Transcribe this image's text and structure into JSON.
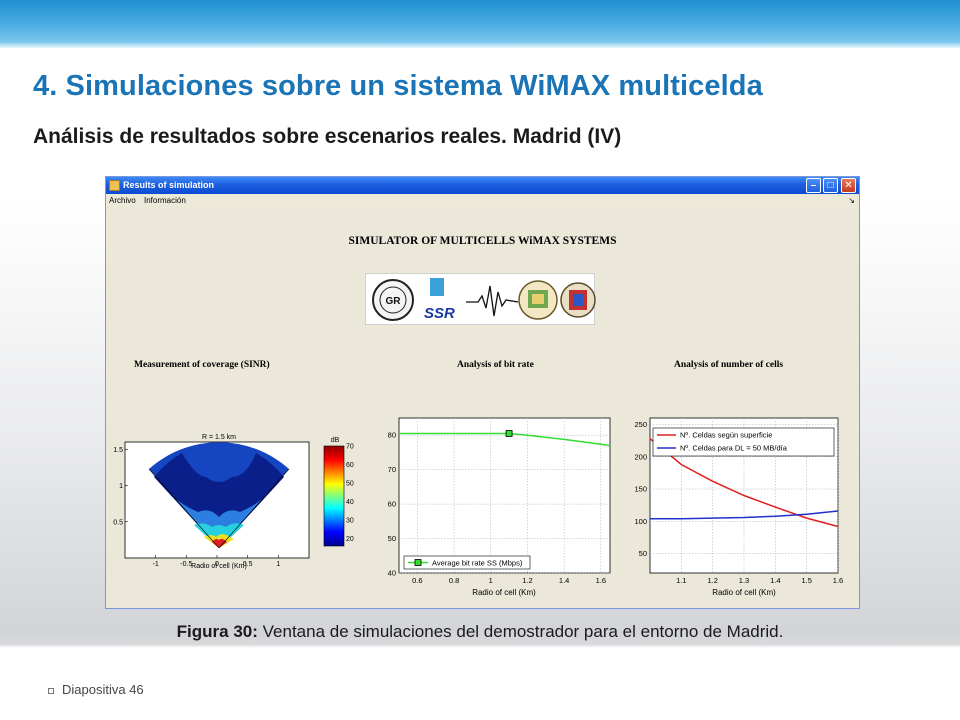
{
  "slide": {
    "title": "4. Simulaciones sobre un sistema WiMAX multicelda",
    "subtitle": "Análisis de resultados sobre escenarios reales. Madrid (IV)",
    "caption_bold": "Figura 30:",
    "caption_rest": " Ventana de simulaciones del demostrador para el entorno de Madrid.",
    "footer": "Diapositiva 46",
    "colors": {
      "title": "#1a74b6",
      "band": "#2a96d6"
    }
  },
  "window": {
    "title": "Results of simulation",
    "menu": [
      "Archivo",
      "Información"
    ],
    "min_icon": "minimize-icon",
    "max_icon": "maximize-icon",
    "close_icon": "close-icon",
    "simulator_title": "SIMULATOR OF MULTICELLS WiMAX SYSTEMS",
    "logos": {
      "gr": "GR",
      "ssr": "SSR"
    }
  },
  "panels": {
    "coverage_title": "Measurement of coverage (SINR)",
    "bitrate_title": "Analysis of bit rate",
    "cells_title": "Analysis of number of cells"
  },
  "chart_data": [
    {
      "type": "heatmap",
      "title": "R = 1.5 km",
      "xlabel": "Radio of cell (Km)",
      "ylabel": "",
      "xticks": [
        "-1",
        "-0.5",
        "0",
        "0.5",
        "1"
      ],
      "yticks": [
        "1.5",
        "1",
        "0.5"
      ],
      "xlim": [
        -1.5,
        1.5
      ],
      "ylim": [
        0,
        1.6
      ],
      "colorbar": {
        "label": "dB",
        "ticks": [
          "70",
          "60",
          "50",
          "40",
          "30",
          "20"
        ],
        "range": [
          16,
          70
        ]
      }
    },
    {
      "type": "line",
      "xlabel": "Radio of cell (Km)",
      "ylabel": "",
      "xticks": [
        "0.6",
        "0.8",
        "1",
        "1.2",
        "1.4",
        "1.6"
      ],
      "yticks": [
        "80",
        "70",
        "60",
        "50",
        "40"
      ],
      "xlim": [
        0.5,
        1.65
      ],
      "ylim": [
        40,
        85
      ],
      "grid": true,
      "legend_placement": "bottom-left",
      "series": [
        {
          "name": "Average bit rate SS (Mbps)",
          "color": "#33dd33",
          "x": [
            0.5,
            0.6,
            0.8,
            1.0,
            1.1,
            1.2,
            1.4,
            1.6,
            1.65
          ],
          "y": [
            80.5,
            80.5,
            80.5,
            80.5,
            80.5,
            80.0,
            78.8,
            77.4,
            77.0
          ],
          "marker_x": 1.1,
          "marker_y": 80.5
        }
      ]
    },
    {
      "type": "line",
      "xlabel": "Radio of cell (Km)",
      "ylabel": "",
      "xticks": [
        "1.1",
        "1.2",
        "1.3",
        "1.4",
        "1.5",
        "1.6"
      ],
      "yticks": [
        "250",
        "200",
        "150",
        "100",
        "50"
      ],
      "xlim": [
        1.0,
        1.6
      ],
      "ylim": [
        20,
        260
      ],
      "grid": true,
      "legend_placement": "top-right",
      "series": [
        {
          "name": "Nº. Celdas según superficie",
          "color": "#e02020",
          "x": [
            1.0,
            1.1,
            1.2,
            1.3,
            1.4,
            1.5,
            1.6
          ],
          "y": [
            228,
            188,
            162,
            140,
            122,
            105,
            92
          ]
        },
        {
          "name": "Nº. Celdas para DL = 50 MB/día",
          "color": "#2030d0",
          "x": [
            1.0,
            1.1,
            1.2,
            1.3,
            1.4,
            1.5,
            1.6
          ],
          "y": [
            104,
            104,
            105,
            106,
            108,
            111,
            116
          ]
        }
      ]
    }
  ]
}
